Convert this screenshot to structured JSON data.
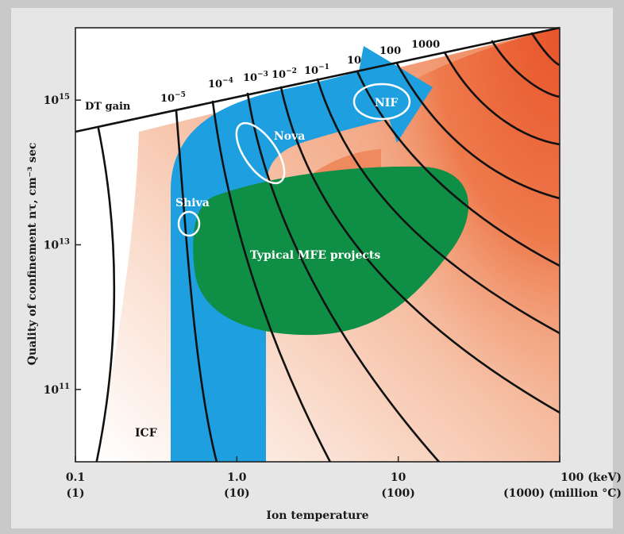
{
  "chart_data": {
    "type": "area",
    "xlabel": "Ion temperature",
    "ylabel": "Quality of confinement nτ, cm⁻³ sec",
    "x_scale": "log",
    "y_scale": "log",
    "xlim": [
      0.1,
      100
    ],
    "ylim": [
      10000000000.0,
      1e+16
    ],
    "x_ticks": [
      {
        "value": 0.1,
        "line1": "0.1",
        "line2": "(1)"
      },
      {
        "value": 1.0,
        "line1": "1.0",
        "line2": "(10)"
      },
      {
        "value": 10,
        "line1": "10",
        "line2": "(100)"
      },
      {
        "value": 100,
        "line1": "100 (keV)",
        "line2": "(1000) (million °C)"
      }
    ],
    "y_ticks": [
      {
        "value": 1000000000000000.0,
        "base": "10",
        "exp": "15"
      },
      {
        "value": 10000000000000.0,
        "base": "10",
        "exp": "13"
      },
      {
        "value": 100000000000.0,
        "base": "10",
        "exp": "11"
      }
    ],
    "gain_title": "DT gain",
    "gain_labels": [
      {
        "base": "10",
        "exp": "−5"
      },
      {
        "base": "10",
        "exp": "−4"
      },
      {
        "base": "10",
        "exp": "−3"
      },
      {
        "base": "10",
        "exp": "−2"
      },
      {
        "base": "10",
        "exp": "−1"
      },
      {
        "base": "10",
        "exp": ""
      },
      {
        "base": "100",
        "exp": ""
      },
      {
        "base": "1000",
        "exp": ""
      }
    ],
    "regions": {
      "icf_label": "ICF",
      "mfe_label": "Typical MFE projects",
      "experiments": [
        "Shiva",
        "Nova",
        "NIF"
      ]
    },
    "colors": {
      "icf_arrow": "#1ea0e0",
      "mfe_region": "#0f8e46",
      "ignition_region": "#ec6a3c",
      "background_gradient_light": "#fbe6dc",
      "contours": "#111111"
    }
  }
}
